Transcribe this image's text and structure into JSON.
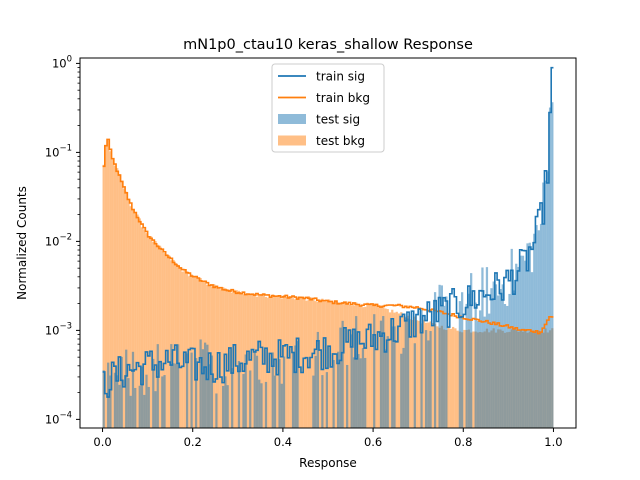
{
  "chart_data": {
    "type": "histogram",
    "title": "mN1p0_ctau10 keras_shallow Response",
    "xlabel": "Response",
    "ylabel": "Normalized Counts",
    "xlim": [
      -0.05,
      1.05
    ],
    "ylim": [
      8e-05,
      1.15
    ],
    "yscale": "log",
    "x_ticks": [
      0.0,
      0.2,
      0.4,
      0.6,
      0.8,
      1.0
    ],
    "x_tick_labels": [
      "0.0",
      "0.2",
      "0.4",
      "0.6",
      "0.8",
      "1.0"
    ],
    "y_ticks": [
      0.0001,
      0.001,
      0.01,
      0.1,
      1
    ],
    "y_tick_labels": [
      {
        "base": "10",
        "exp": "−4"
      },
      {
        "base": "10",
        "exp": "−3"
      },
      {
        "base": "10",
        "exp": "−2"
      },
      {
        "base": "10",
        "exp": "−1"
      },
      {
        "base": "10",
        "exp": "0"
      }
    ],
    "legend_position": "top-center",
    "legend": [
      {
        "label": "train sig",
        "kind": "line",
        "color": "#1f77b4"
      },
      {
        "label": "train bkg",
        "kind": "line",
        "color": "#ff7f0e"
      },
      {
        "label": "test sig",
        "kind": "patch",
        "color": "#1f77b4",
        "opacity": 0.5
      },
      {
        "label": "test bkg",
        "kind": "patch",
        "color": "#ff7f0e",
        "opacity": 0.5
      }
    ],
    "bins": 200,
    "bin_range": [
      0,
      1
    ],
    "series": [
      {
        "name": "train bkg",
        "style": "step",
        "color": "#ff7f0e",
        "points": [
          [
            0.0,
            0.052
          ],
          [
            0.01,
            0.16
          ],
          [
            0.02,
            0.09
          ],
          [
            0.03,
            0.068
          ],
          [
            0.04,
            0.05
          ],
          [
            0.05,
            0.037
          ],
          [
            0.06,
            0.028
          ],
          [
            0.07,
            0.022
          ],
          [
            0.08,
            0.018
          ],
          [
            0.09,
            0.0145
          ],
          [
            0.1,
            0.012
          ],
          [
            0.12,
            0.0092
          ],
          [
            0.14,
            0.0072
          ],
          [
            0.16,
            0.0058
          ],
          [
            0.18,
            0.0047
          ],
          [
            0.2,
            0.0041
          ],
          [
            0.22,
            0.0036
          ],
          [
            0.25,
            0.0031
          ],
          [
            0.28,
            0.0028
          ],
          [
            0.3,
            0.0027
          ],
          [
            0.35,
            0.0025
          ],
          [
            0.4,
            0.0024
          ],
          [
            0.45,
            0.0023
          ],
          [
            0.5,
            0.0021
          ],
          [
            0.55,
            0.002
          ],
          [
            0.6,
            0.0019
          ],
          [
            0.65,
            0.0019
          ],
          [
            0.7,
            0.0018
          ],
          [
            0.75,
            0.0016
          ],
          [
            0.8,
            0.0014
          ],
          [
            0.85,
            0.00125
          ],
          [
            0.9,
            0.0011
          ],
          [
            0.93,
            0.001
          ],
          [
            0.95,
            0.001
          ],
          [
            0.97,
            0.00095
          ],
          [
            0.98,
            0.0011
          ],
          [
            0.99,
            0.0014
          ],
          [
            1.0,
            0.0014
          ]
        ],
        "jitter": 0.05
      },
      {
        "name": "test bkg",
        "style": "bar",
        "color": "#ff7f0e",
        "opacity": 0.5,
        "points": [
          [
            0.0,
            0.055
          ],
          [
            0.01,
            0.16
          ],
          [
            0.02,
            0.09
          ],
          [
            0.03,
            0.068
          ],
          [
            0.04,
            0.05
          ],
          [
            0.05,
            0.037
          ],
          [
            0.06,
            0.028
          ],
          [
            0.07,
            0.022
          ],
          [
            0.08,
            0.018
          ],
          [
            0.09,
            0.0145
          ],
          [
            0.1,
            0.012
          ],
          [
            0.12,
            0.0092
          ],
          [
            0.14,
            0.0072
          ],
          [
            0.16,
            0.0058
          ],
          [
            0.18,
            0.0047
          ],
          [
            0.2,
            0.0041
          ],
          [
            0.22,
            0.0036
          ],
          [
            0.25,
            0.0031
          ],
          [
            0.28,
            0.0028
          ],
          [
            0.3,
            0.0027
          ],
          [
            0.35,
            0.0025
          ],
          [
            0.4,
            0.0024
          ],
          [
            0.45,
            0.0023
          ],
          [
            0.5,
            0.0021
          ],
          [
            0.55,
            0.002
          ],
          [
            0.6,
            0.0019
          ],
          [
            0.65,
            0.0016
          ],
          [
            0.7,
            0.0013
          ],
          [
            0.75,
            0.0011
          ],
          [
            0.8,
            0.001
          ],
          [
            0.85,
            0.001
          ],
          [
            0.9,
            0.001
          ],
          [
            0.95,
            0.001
          ],
          [
            1.0,
            0.001
          ]
        ],
        "jitter": 0.08
      },
      {
        "name": "train sig",
        "style": "step",
        "color": "#1f77b4",
        "points": [
          [
            0.0,
            0.00025
          ],
          [
            0.05,
            0.00035
          ],
          [
            0.1,
            0.0004
          ],
          [
            0.15,
            0.00045
          ],
          [
            0.2,
            0.0004
          ],
          [
            0.25,
            0.0004
          ],
          [
            0.3,
            0.00045
          ],
          [
            0.35,
            0.0005
          ],
          [
            0.4,
            0.0005
          ],
          [
            0.45,
            0.00055
          ],
          [
            0.5,
            0.0006
          ],
          [
            0.55,
            0.0007
          ],
          [
            0.6,
            0.0008
          ],
          [
            0.65,
            0.001
          ],
          [
            0.7,
            0.0013
          ],
          [
            0.75,
            0.0016
          ],
          [
            0.8,
            0.002
          ],
          [
            0.84,
            0.0025
          ],
          [
            0.88,
            0.003
          ],
          [
            0.9,
            0.0035
          ],
          [
            0.92,
            0.0045
          ],
          [
            0.94,
            0.006
          ],
          [
            0.955,
            0.009
          ],
          [
            0.965,
            0.013
          ],
          [
            0.975,
            0.02
          ],
          [
            0.985,
            0.05
          ],
          [
            0.99,
            0.085
          ],
          [
            0.995,
            0.68
          ],
          [
            1.0,
            0.68
          ]
        ],
        "jitter": 0.6
      },
      {
        "name": "test sig",
        "style": "bar",
        "color": "#1f77b4",
        "opacity": 0.5,
        "points": [
          [
            0.0,
            0.0002
          ],
          [
            0.05,
            0.0003
          ],
          [
            0.1,
            0.00035
          ],
          [
            0.15,
            0.0004
          ],
          [
            0.2,
            0.0004
          ],
          [
            0.25,
            0.0004
          ],
          [
            0.3,
            0.00045
          ],
          [
            0.35,
            0.0005
          ],
          [
            0.4,
            0.0005
          ],
          [
            0.45,
            0.00055
          ],
          [
            0.5,
            0.0006
          ],
          [
            0.55,
            0.0007
          ],
          [
            0.6,
            0.0008
          ],
          [
            0.65,
            0.001
          ],
          [
            0.7,
            0.0013
          ],
          [
            0.75,
            0.0016
          ],
          [
            0.8,
            0.002
          ],
          [
            0.84,
            0.0026
          ],
          [
            0.88,
            0.003
          ],
          [
            0.9,
            0.0038
          ],
          [
            0.92,
            0.0048
          ],
          [
            0.94,
            0.0065
          ],
          [
            0.955,
            0.009
          ],
          [
            0.965,
            0.013
          ],
          [
            0.975,
            0.02
          ],
          [
            0.985,
            0.05
          ],
          [
            0.99,
            0.09
          ],
          [
            0.995,
            0.7
          ],
          [
            1.0,
            0.7
          ]
        ],
        "jitter": 0.9,
        "sparse": true
      }
    ]
  }
}
